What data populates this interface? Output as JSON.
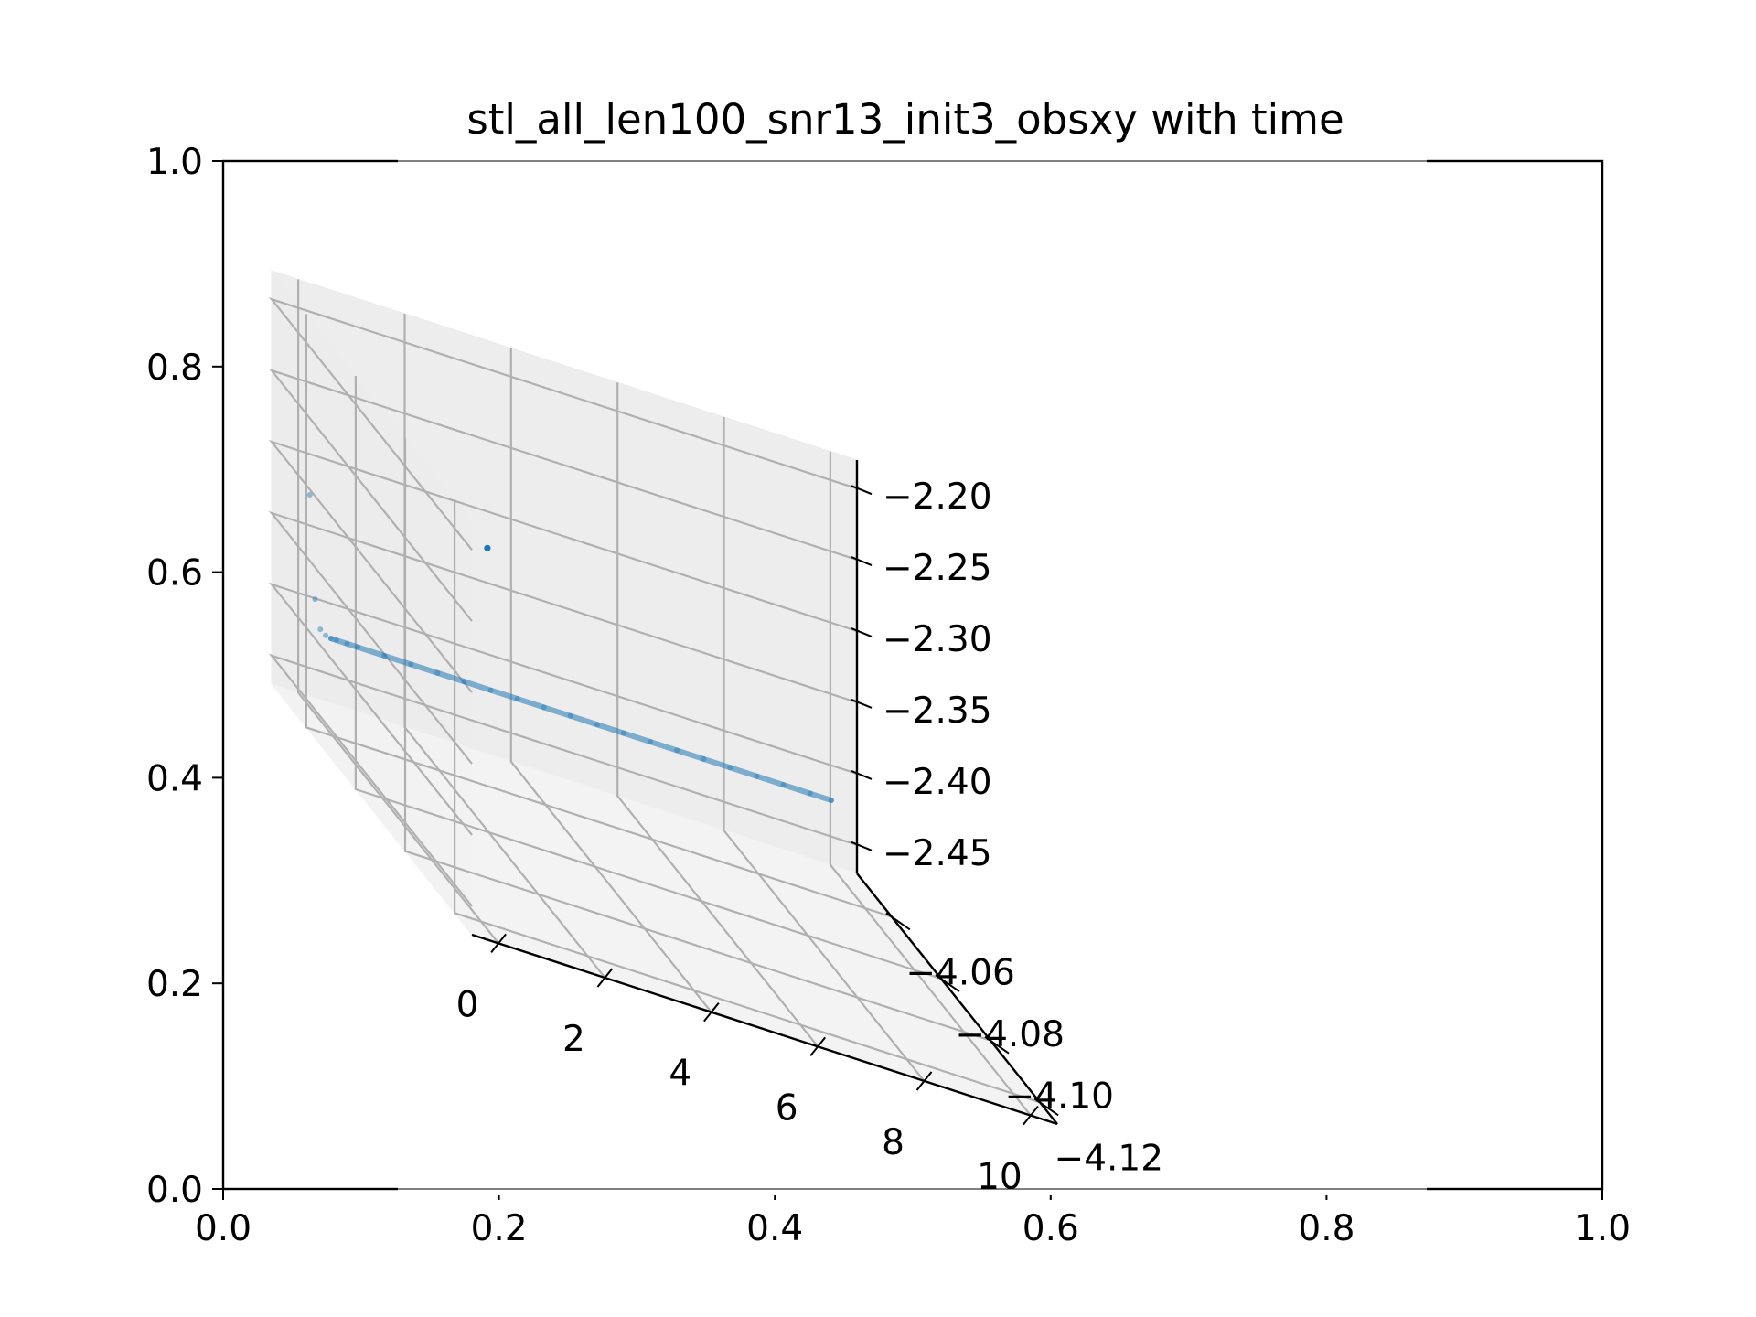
{
  "chart_data": [
    {
      "type": "scatter",
      "title": "stl_all_len100_snr13_init3_obsxy with time",
      "x_ticks": [
        "0.0",
        "0.2",
        "0.4",
        "0.6",
        "0.8",
        "1.0"
      ],
      "y_ticks": [
        "0.0",
        "0.2",
        "0.4",
        "0.6",
        "0.8",
        "1.0"
      ],
      "xlim": [
        0,
        1
      ],
      "ylim": [
        0,
        1
      ],
      "note_series": "empty 2D host axes behind the 3D axes"
    },
    {
      "type": "scatter",
      "projection": "3d",
      "title": "stl_all_len100_snr13_init3_obsxy with time",
      "time_ticks": [
        "0",
        "2",
        "4",
        "6",
        "8",
        "10"
      ],
      "x_ticks": [
        "−4.06",
        "−4.08",
        "−4.10",
        "−4.12"
      ],
      "z_ticks": [
        "−2.20",
        "−2.25",
        "−2.30",
        "−2.35",
        "−2.40",
        "−2.45"
      ],
      "time_range": [
        -0.5,
        10.5
      ],
      "x_range": [
        -4.127,
        -4.046
      ],
      "z_range": [
        -2.47,
        -2.18
      ],
      "color": "#1f77b4",
      "grid": true,
      "series": [
        {
          "points": [
            {
              "t": 0.0,
              "x": -4.1225,
              "y": -2.2025
            },
            {
              "t": 0.1,
              "x": -4.0485,
              "y": -2.3245
            },
            {
              "t": 0.2,
              "x": -4.0485,
              "y": -2.3965
            },
            {
              "t": 0.3,
              "x": -4.0485,
              "y": -2.4165
            },
            {
              "t": 0.4,
              "x": -4.0485,
              "y": -2.4195
            },
            {
              "t": 0.5,
              "x": -4.0485,
              "y": -2.4205
            },
            {
              "t": 0.6,
              "x": -4.0485,
              "y": -2.4205
            },
            {
              "t": 0.8,
              "x": -4.0485,
              "y": -2.4205
            },
            {
              "t": 1.0,
              "x": -4.0485,
              "y": -2.4205
            },
            {
              "t": 1.5,
              "x": -4.0485,
              "y": -2.4205
            },
            {
              "t": 2.0,
              "x": -4.0485,
              "y": -2.4205
            },
            {
              "t": 2.5,
              "x": -4.0485,
              "y": -2.4205
            },
            {
              "t": 3.0,
              "x": -4.0485,
              "y": -2.4205
            },
            {
              "t": 3.5,
              "x": -4.0485,
              "y": -2.4205
            },
            {
              "t": 4.0,
              "x": -4.0485,
              "y": -2.4205
            },
            {
              "t": 4.5,
              "x": -4.0485,
              "y": -2.4205
            },
            {
              "t": 5.0,
              "x": -4.0485,
              "y": -2.4205
            },
            {
              "t": 5.5,
              "x": -4.0485,
              "y": -2.4205
            },
            {
              "t": 6.0,
              "x": -4.0485,
              "y": -2.4205
            },
            {
              "t": 6.5,
              "x": -4.0485,
              "y": -2.4205
            },
            {
              "t": 7.0,
              "x": -4.0485,
              "y": -2.4205
            },
            {
              "t": 7.5,
              "x": -4.0485,
              "y": -2.4205
            },
            {
              "t": 8.0,
              "x": -4.0485,
              "y": -2.4205
            },
            {
              "t": 8.5,
              "x": -4.0485,
              "y": -2.4205
            },
            {
              "t": 9.0,
              "x": -4.0485,
              "y": -2.4205
            },
            {
              "t": 9.5,
              "x": -4.0485,
              "y": -2.4205
            },
            {
              "t": 9.9,
              "x": -4.0485,
              "y": -2.4205
            }
          ]
        }
      ]
    }
  ]
}
